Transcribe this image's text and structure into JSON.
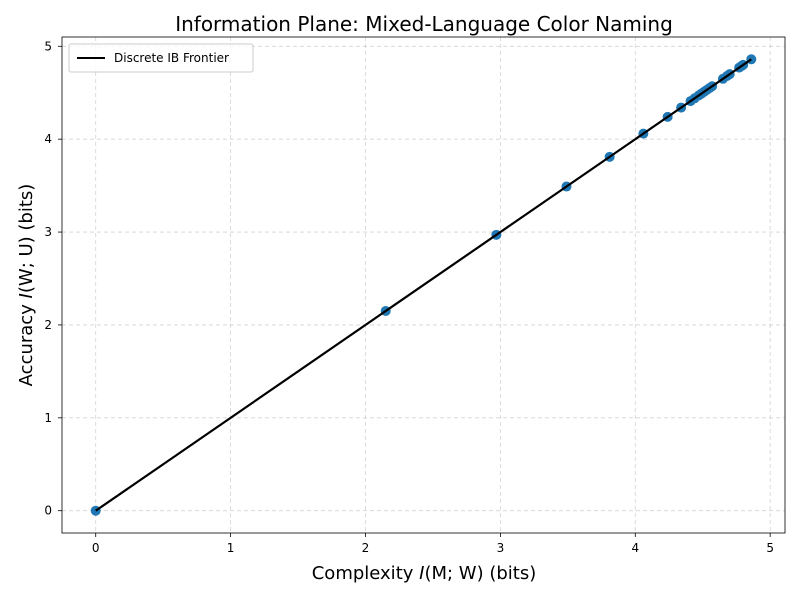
{
  "chart_data": {
    "type": "scatter",
    "title": "Information Plane: Mixed-Language Color Naming",
    "xlabel": {
      "prefix": "Complexity ",
      "symbol": "I",
      "args": "(M; W)",
      "suffix": " (bits)"
    },
    "ylabel": {
      "prefix": "Accuracy ",
      "symbol": "I",
      "args": "(W; U)",
      "suffix": " (bits)"
    },
    "xlim": [
      -0.25,
      5.11
    ],
    "ylim": [
      -0.24,
      5.1
    ],
    "xticks": [
      0,
      1,
      2,
      3,
      4,
      5
    ],
    "yticks": [
      0,
      1,
      2,
      3,
      4,
      5
    ],
    "grid": true,
    "legend": {
      "position": "top-left",
      "entries": [
        "Discrete IB Frontier"
      ]
    },
    "frontier": {
      "name": "Discrete IB Frontier",
      "color": "#000000",
      "points": [
        [
          0,
          0
        ],
        [
          4.86,
          4.86
        ]
      ]
    },
    "points": {
      "color": "#1f77b4",
      "x": [
        0,
        2.15,
        2.97,
        3.49,
        3.81,
        4.06,
        4.24,
        4.34,
        4.41,
        4.44,
        4.47,
        4.49,
        4.51,
        4.53,
        4.55,
        4.57,
        4.65,
        4.68,
        4.7,
        4.77,
        4.79,
        4.8,
        4.86
      ],
      "y": [
        0,
        2.15,
        2.97,
        3.49,
        3.81,
        4.06,
        4.24,
        4.34,
        4.41,
        4.44,
        4.47,
        4.49,
        4.51,
        4.53,
        4.55,
        4.57,
        4.65,
        4.68,
        4.7,
        4.77,
        4.79,
        4.8,
        4.86
      ]
    }
  }
}
